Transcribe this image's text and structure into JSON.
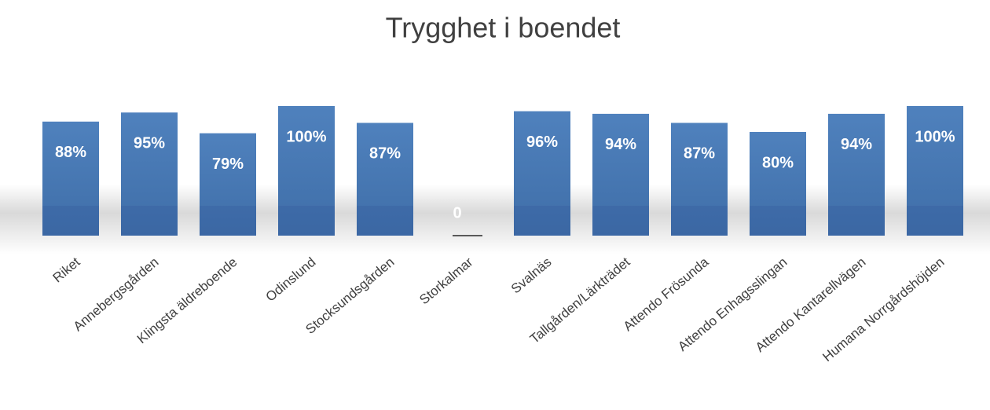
{
  "chart_data": {
    "type": "bar",
    "title": "Trygghet i boendet",
    "categories": [
      "Riket",
      "Annebergsgården",
      "Klingsta äldreboende",
      "Odinslund",
      "Stocksundsgården",
      "Storkalmar",
      "Svalnäs",
      "Tallgården/Lärkträdet",
      "Attendo Frösunda",
      "Attendo Enhagsslingan",
      "Attendo Kantarellvägen",
      "Humana Norrgårdshöjden"
    ],
    "values": [
      88,
      95,
      79,
      100,
      87,
      0,
      96,
      94,
      87,
      80,
      94,
      100
    ],
    "value_labels": [
      "88%",
      "95%",
      "79%",
      "100%",
      "87%",
      "0",
      "96%",
      "94%",
      "87%",
      "80%",
      "94%",
      "100%"
    ],
    "color": "#4f81bd"
  }
}
